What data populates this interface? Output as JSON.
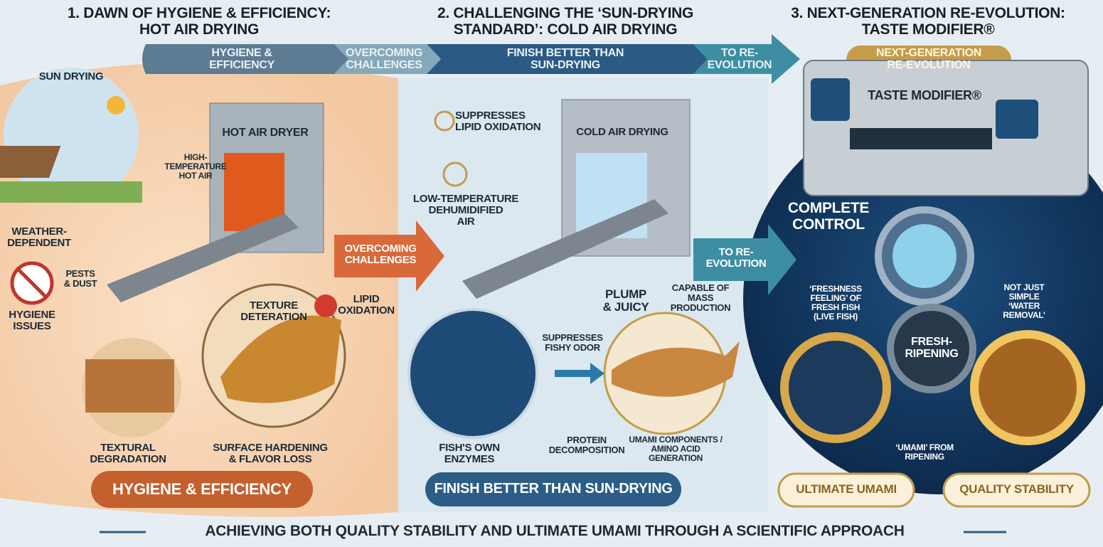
{
  "banner": {
    "hygiene": "HYGIENE &\nEFFICIENCY",
    "overcoming": "OVERCOMING\nCHALLENGES",
    "finish": "FINISH BETTER THAN\nSUN-DRYING",
    "to_re_evolution": "TO RE-\nEVOLUTION",
    "next_generation": "NEXT-GENERATION\nRE-EVOLUTION"
  },
  "panel1": {
    "title": "1. DAWN OF HYGIENE & EFFICIENCY:\nHOT AIR DRYING",
    "sun_drying": "SUN DRYING",
    "weather": "WEATHER-\nDEPENDENT",
    "pests": "PESTS\n& DUST",
    "hygiene_issues": "HYGIENE\nISSUES",
    "dryer": "HOT AIR DRYER",
    "hot_air": "HIGH-\nTEMPERATURE\nHOT AIR",
    "texture": "TEXTURE\nDETERATION",
    "lipid": "LIPID\nOXIDATION",
    "textural": "TEXTURAL\nDEGRADATION",
    "surface": "SURFACE HARDENING\n& FLAVOR LOSS",
    "bottom": "HYGIENE & EFFICIENCY"
  },
  "middle_arrows": {
    "overcoming": "OVERCOMING\nCHALLENGES",
    "to_re_evolution": "TO RE-\nEVOLUTION"
  },
  "panel2": {
    "title": "2. CHALLENGING THE ‘SUN-DRYING\nSTANDARD’: COLD AIR DRYING",
    "lipid": "SUPPRESSES\nLIPID OXIDATION",
    "dryer": "COLD AIR DRYING",
    "low_temp": "LOW-TEMPERATURE\nDEHUMIDIFIED\nAIR",
    "plump": "PLUMP\n& JUICY",
    "mass": "CAPABLE OF\nMASS\nPRODUCTION",
    "fishy": "SUPPRESSES\nFISHY ODOR",
    "enzymes": "FISH'S OWN\nENZYMES",
    "protein": "PROTEIN\nDECOMPOSITION",
    "umami": "UMAMI COMPONENTS /\nAMINO ACID\nGENERATION",
    "bottom": "FINISH BETTER THAN SUN-DRYING"
  },
  "panel3": {
    "title": "3. NEXT-GENERATION RE-EVOLUTION:\nTASTE MODIFIER®",
    "machine": "TASTE MODIFIER®",
    "complete": "COMPLETE\nCONTROL",
    "freshness": "‘FRESHNESS\nFEELING’ OF\nFRESH FISH\n(LIVE FISH)",
    "not_just": "NOT JUST\nSIMPLE\n‘WATER\nREMOVAL’",
    "center": "FRESH-\nRIPENING",
    "umami_ripening": "‘UMAMI’ FROM\nRIPENING",
    "ultimate": "ULTIMATE UMAMI",
    "quality": "QUALITY STABILITY"
  },
  "footer": "ACHIEVING BOTH QUALITY STABILITY AND ULTIMATE UMAMI THROUGH A SCIENTIFIC APPROACH"
}
